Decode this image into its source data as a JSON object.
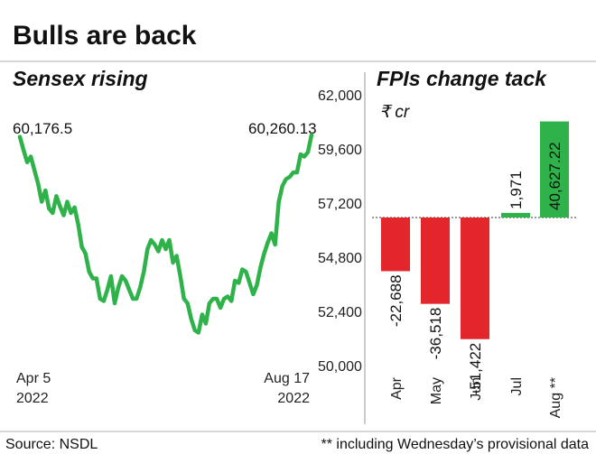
{
  "title": "Bulls are back",
  "footer": {
    "source": "Source: NSDL",
    "note": "** including Wednesday’s provisional data"
  },
  "colors": {
    "line": "#2fb24a",
    "bar_negative": "#e3262b",
    "bar_positive": "#2fb24a",
    "rule": "#cccccc",
    "divider": "#999999"
  },
  "chart_data": [
    {
      "type": "line",
      "title": "Sensex rising",
      "x_start_label": [
        "Apr 5",
        "2022"
      ],
      "x_end_label": [
        "Aug 17",
        "2022"
      ],
      "ylim": [
        50000,
        62000
      ],
      "yticks": [
        "62,000",
        "59,600",
        "57,200",
        "54,800",
        "52,400",
        "50,000"
      ],
      "ytick_values": [
        62000,
        59600,
        57200,
        54800,
        52400,
        50000
      ],
      "start_value_label": "60,176.5",
      "end_value_label": "60,260.13",
      "y": [
        60176.5,
        59600,
        59050,
        59300,
        58700,
        58100,
        57300,
        57800,
        57000,
        56800,
        57550,
        57100,
        56700,
        57300,
        56800,
        57050,
        56300,
        55300,
        55000,
        54200,
        53900,
        53900,
        53000,
        52900,
        53400,
        54000,
        52800,
        53500,
        54000,
        53800,
        53400,
        53000,
        53000,
        53500,
        54200,
        55200,
        55600,
        55400,
        55100,
        55600,
        55200,
        55600,
        54600,
        54900,
        54000,
        53000,
        52800,
        52100,
        51600,
        51500,
        52300,
        51900,
        52800,
        53000,
        53000,
        52600,
        53000,
        53100,
        52900,
        53800,
        53700,
        54300,
        54200,
        53700,
        53200,
        53600,
        54400,
        55000,
        55500,
        55900,
        55400,
        57300,
        58000,
        58300,
        58400,
        58600,
        58600,
        59400,
        59300,
        59500,
        60260.13
      ]
    },
    {
      "type": "bar",
      "title": "FPIs change tack",
      "unit": "₹ cr",
      "categories": [
        "Apr",
        "May",
        "Jun",
        "Jul",
        "Aug **"
      ],
      "values": [
        -22688,
        -36518,
        -51422,
        1971,
        40627.22
      ],
      "value_labels": [
        "-22,688",
        "-36,518",
        "-51,422",
        "1,971",
        "40,627.22"
      ]
    }
  ]
}
